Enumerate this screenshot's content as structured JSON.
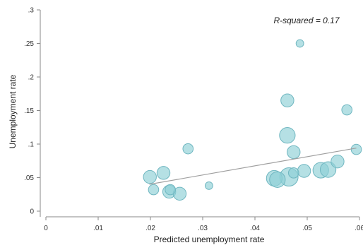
{
  "chart_data": {
    "type": "scatter",
    "title": "",
    "xlabel": "Predicted unemployment rate",
    "ylabel": "Unemployment rate",
    "annotation": "R-squared = 0.17",
    "xlim": [
      0,
      0.06
    ],
    "ylim": [
      0,
      0.3
    ],
    "x_ticks": [
      0,
      0.01,
      0.02,
      0.03,
      0.04,
      0.05,
      0.06
    ],
    "x_tick_labels": [
      "0",
      ".01",
      ".02",
      ".03",
      ".04",
      ".05",
      ".06"
    ],
    "y_ticks": [
      0,
      0.05,
      0.1,
      0.15,
      0.2,
      0.25,
      0.3
    ],
    "y_tick_labels": [
      "0",
      ".05",
      ".1",
      ".15",
      ".2",
      ".25",
      ".3"
    ],
    "grid": false,
    "marker_color": "#8ecfd6",
    "marker_edge_color": "#6fb6c0",
    "fit_line_color": "#a0a0a0",
    "fit_line": {
      "x": [
        0.0198,
        0.0594
      ],
      "y": [
        0.04,
        0.094
      ]
    },
    "points": [
      {
        "x": 0.0199,
        "y": 0.051,
        "weight": 3
      },
      {
        "x": 0.0206,
        "y": 0.032,
        "weight": 2
      },
      {
        "x": 0.0225,
        "y": 0.057,
        "weight": 3
      },
      {
        "x": 0.0236,
        "y": 0.029,
        "weight": 3
      },
      {
        "x": 0.0238,
        "y": 0.032,
        "weight": 2
      },
      {
        "x": 0.0256,
        "y": 0.026,
        "weight": 3
      },
      {
        "x": 0.0272,
        "y": 0.093,
        "weight": 2
      },
      {
        "x": 0.0312,
        "y": 0.038,
        "weight": 1
      },
      {
        "x": 0.0437,
        "y": 0.049,
        "weight": 4
      },
      {
        "x": 0.0443,
        "y": 0.047,
        "weight": 4
      },
      {
        "x": 0.0462,
        "y": 0.165,
        "weight": 3
      },
      {
        "x": 0.0462,
        "y": 0.113,
        "weight": 4
      },
      {
        "x": 0.0465,
        "y": 0.051,
        "weight": 5
      },
      {
        "x": 0.0474,
        "y": 0.088,
        "weight": 3
      },
      {
        "x": 0.0474,
        "y": 0.057,
        "weight": 2
      },
      {
        "x": 0.0486,
        "y": 0.25,
        "weight": 1
      },
      {
        "x": 0.0494,
        "y": 0.06,
        "weight": 3
      },
      {
        "x": 0.0526,
        "y": 0.061,
        "weight": 4
      },
      {
        "x": 0.054,
        "y": 0.062,
        "weight": 4
      },
      {
        "x": 0.0558,
        "y": 0.074,
        "weight": 3
      },
      {
        "x": 0.0576,
        "y": 0.151,
        "weight": 2
      },
      {
        "x": 0.0594,
        "y": 0.092,
        "weight": 2
      }
    ]
  }
}
